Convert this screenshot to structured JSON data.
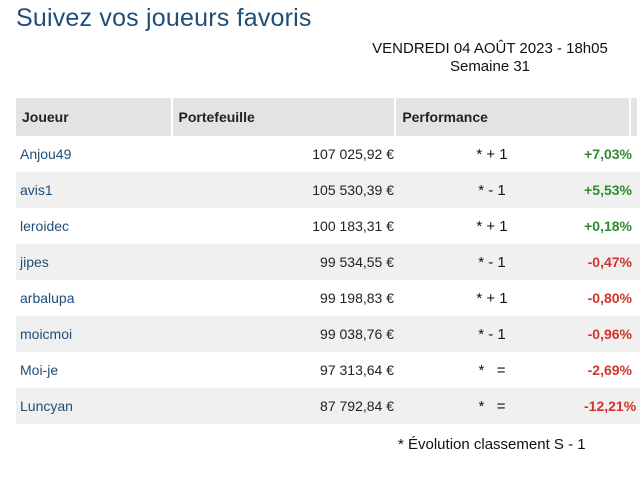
{
  "page": {
    "title": "Suivez vos joueurs favoris",
    "date": "VENDREDI 04 AOÛT 2023 - 18h05",
    "week": "Semaine 31"
  },
  "table": {
    "headers": [
      "Joueur",
      "Portefeuille",
      "Performance",
      ""
    ],
    "rows": [
      {
        "player": "Anjou49",
        "wallet": "107 025,92 €",
        "evolution": "* + 1",
        "performance": "+7,03%",
        "sign": "positive"
      },
      {
        "player": "avis1",
        "wallet": "105 530,39 €",
        "evolution": "* - 1",
        "performance": "+5,53%",
        "sign": "positive"
      },
      {
        "player": "leroidec",
        "wallet": "100 183,31 €",
        "evolution": "* + 1",
        "performance": "+0,18%",
        "sign": "positive"
      },
      {
        "player": "jipes",
        "wallet": "99 534,55 €",
        "evolution": "* - 1",
        "performance": "-0,47%",
        "sign": "negative"
      },
      {
        "player": "arbalupa",
        "wallet": "99 198,83 €",
        "evolution": "* + 1",
        "performance": "-0,80%",
        "sign": "negative"
      },
      {
        "player": "moicmoi",
        "wallet": "99 038,76 €",
        "evolution": "* - 1",
        "performance": "-0,96%",
        "sign": "negative"
      },
      {
        "player": "Moi-je",
        "wallet": "97 313,64 €",
        "evolution": "*   =",
        "performance": "-2,69%",
        "sign": "negative"
      },
      {
        "player": "Luncyan",
        "wallet": "87 792,84 €",
        "evolution": "*   =",
        "performance": "-12,21%",
        "sign": "negative"
      }
    ]
  },
  "footnote": "* Évolution classement S - 1",
  "colors": {
    "title": "#1f4e79",
    "player_link": "#1f4e79",
    "positive": "#2e8b2e",
    "negative": "#d0352b",
    "header_bg": "#e3e3e3",
    "row_alt_bg": "#f0f0f0"
  }
}
